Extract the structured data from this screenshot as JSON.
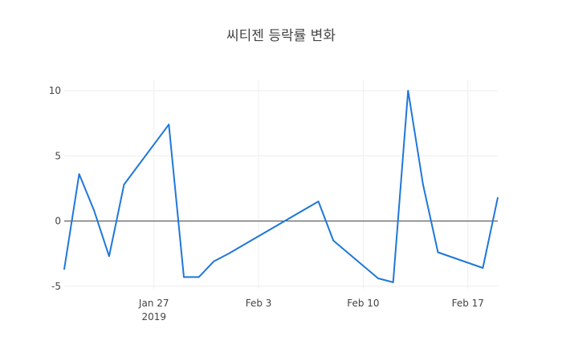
{
  "chart_data": {
    "type": "line",
    "title": "씨티젠 등락률 변화",
    "xlabel": "",
    "ylabel": "",
    "x": [
      "2019-01-21",
      "2019-01-22",
      "2019-01-23",
      "2019-01-24",
      "2019-01-25",
      "2019-01-28",
      "2019-01-29",
      "2019-01-30",
      "2019-01-31",
      "2019-02-01",
      "2019-02-07",
      "2019-02-08",
      "2019-02-11",
      "2019-02-12",
      "2019-02-13",
      "2019-02-14",
      "2019-02-15",
      "2019-02-18",
      "2019-02-19"
    ],
    "series": [
      {
        "values": [
          -3.7,
          3.6,
          0.8,
          -2.7,
          2.8,
          7.4,
          -4.3,
          -4.3,
          -3.1,
          -2.5,
          1.5,
          -1.5,
          -4.4,
          -4.7,
          10.0,
          2.8,
          -2.4,
          -3.6,
          1.8
        ]
      }
    ],
    "x_ticks": [
      {
        "date": "2019-01-27",
        "label": "Jan 27",
        "sublabel": "2019"
      },
      {
        "date": "2019-02-03",
        "label": "Feb 3",
        "sublabel": ""
      },
      {
        "date": "2019-02-10",
        "label": "Feb 10",
        "sublabel": ""
      },
      {
        "date": "2019-02-17",
        "label": "Feb 17",
        "sublabel": ""
      }
    ],
    "y_ticks": [
      -5,
      0,
      5,
      10
    ],
    "xlim": [
      "2019-01-21",
      "2019-02-19"
    ],
    "ylim": [
      -5.2,
      10.8
    ],
    "grid": true,
    "zero_line": true,
    "line_color": "#1f77d9"
  }
}
